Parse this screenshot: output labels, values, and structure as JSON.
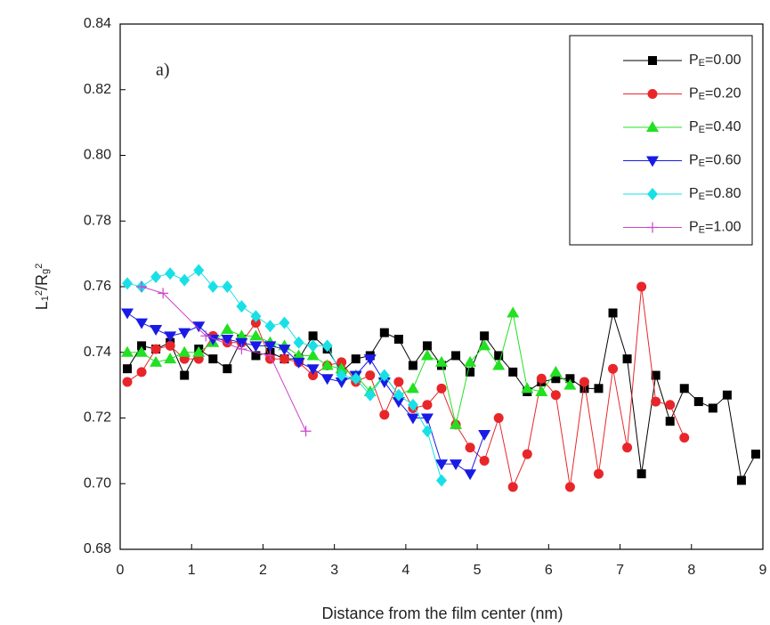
{
  "chart_data": {
    "type": "line",
    "annotation": "a)",
    "x_label": "Distance from the film center (nm)",
    "y_label": "L12/Rg2",
    "xlim": [
      0,
      9
    ],
    "ylim": [
      0.68,
      0.84
    ],
    "xticks": [
      0,
      1,
      2,
      3,
      4,
      5,
      6,
      7,
      8,
      9
    ],
    "yticks": [
      0.68,
      {
        "value": 0.7,
        "label": "0.70"
      },
      0.72,
      0.74,
      0.76,
      0.78,
      {
        "value": 0.8,
        "label": "0.80"
      },
      0.82,
      0.84
    ],
    "legend": "upper right",
    "series": [
      {
        "name": "PE=0.00",
        "color": "#000000",
        "marker": "square",
        "x": [
          0.1,
          0.3,
          0.5,
          0.7,
          0.9,
          1.1,
          1.3,
          1.5,
          1.7,
          1.9,
          2.1,
          2.3,
          2.5,
          2.7,
          2.9,
          3.1,
          3.3,
          3.5,
          3.7,
          3.9,
          4.1,
          4.3,
          4.5,
          4.7,
          4.9,
          5.1,
          5.3,
          5.5,
          5.7,
          5.9,
          6.1,
          6.3,
          6.5,
          6.7,
          6.9,
          7.1,
          7.3,
          7.5,
          7.7,
          7.9,
          8.1,
          8.3,
          8.5,
          8.7,
          8.9
        ],
        "values": [
          0.735,
          0.742,
          0.741,
          0.743,
          0.733,
          0.741,
          0.738,
          0.735,
          0.744,
          0.739,
          0.74,
          0.738,
          0.738,
          0.745,
          0.741,
          0.734,
          0.738,
          0.739,
          0.746,
          0.744,
          0.736,
          0.742,
          0.736,
          0.739,
          0.734,
          0.745,
          0.739,
          0.734,
          0.728,
          0.731,
          0.732,
          0.732,
          0.729,
          0.729,
          0.752,
          0.738,
          0.703,
          0.733,
          0.719,
          0.729,
          0.725,
          0.723,
          0.727,
          0.701,
          0.709
        ]
      },
      {
        "name": "PE=0.20",
        "color": "#e8262a",
        "marker": "circle",
        "x": [
          0.1,
          0.3,
          0.5,
          0.7,
          0.9,
          1.1,
          1.3,
          1.5,
          1.7,
          1.9,
          2.1,
          2.3,
          2.5,
          2.7,
          2.9,
          3.1,
          3.3,
          3.5,
          3.7,
          3.9,
          4.1,
          4.3,
          4.5,
          4.7,
          4.9,
          5.1,
          5.3,
          5.5,
          5.7,
          5.9,
          6.1,
          6.3,
          6.5,
          6.7,
          6.9,
          7.1,
          7.3,
          7.5,
          7.7,
          7.9
        ],
        "values": [
          0.731,
          0.734,
          0.741,
          0.742,
          0.738,
          0.738,
          0.745,
          0.743,
          0.743,
          0.749,
          0.738,
          0.738,
          0.737,
          0.733,
          0.736,
          0.737,
          0.731,
          0.733,
          0.721,
          0.731,
          0.723,
          0.724,
          0.729,
          0.718,
          0.711,
          0.707,
          0.72,
          0.699,
          0.709,
          0.732,
          0.727,
          0.699,
          0.731,
          0.703,
          0.735,
          0.711,
          0.76,
          0.725,
          0.724,
          0.714
        ]
      },
      {
        "name": "PE=0.40",
        "color": "#22e022",
        "marker": "triangle-up",
        "x": [
          0.1,
          0.3,
          0.5,
          0.7,
          0.9,
          1.1,
          1.3,
          1.5,
          1.7,
          1.9,
          2.1,
          2.3,
          2.5,
          2.7,
          2.9,
          3.1,
          3.3,
          3.5,
          3.7,
          3.9,
          4.1,
          4.3,
          4.5,
          4.7,
          4.9,
          5.1,
          5.3,
          5.5,
          5.7,
          5.9,
          6.1,
          6.3
        ],
        "values": [
          0.74,
          0.74,
          0.737,
          0.738,
          0.74,
          0.74,
          0.743,
          0.747,
          0.745,
          0.745,
          0.743,
          0.742,
          0.739,
          0.739,
          0.736,
          0.735,
          0.733,
          0.728,
          0.733,
          0.727,
          0.729,
          0.739,
          0.737,
          0.718,
          0.737,
          0.742,
          0.736,
          0.752,
          0.729,
          0.728,
          0.734,
          0.73
        ]
      },
      {
        "name": "PE=0.60",
        "color": "#1a1ae6",
        "marker": "triangle-down",
        "x": [
          0.1,
          0.3,
          0.5,
          0.7,
          0.9,
          1.1,
          1.3,
          1.5,
          1.7,
          1.9,
          2.1,
          2.3,
          2.5,
          2.7,
          2.9,
          3.1,
          3.3,
          3.5,
          3.7,
          3.9,
          4.1,
          4.3,
          4.5,
          4.7,
          4.9,
          5.1
        ],
        "values": [
          0.752,
          0.749,
          0.747,
          0.745,
          0.746,
          0.748,
          0.744,
          0.744,
          0.743,
          0.742,
          0.742,
          0.741,
          0.737,
          0.735,
          0.732,
          0.731,
          0.733,
          0.738,
          0.731,
          0.725,
          0.72,
          0.72,
          0.706,
          0.706,
          0.703,
          0.715
        ]
      },
      {
        "name": "PE=0.80",
        "color": "#19e0e6",
        "marker": "diamond",
        "x": [
          0.1,
          0.3,
          0.5,
          0.7,
          0.9,
          1.1,
          1.3,
          1.5,
          1.7,
          1.9,
          2.1,
          2.3,
          2.5,
          2.7,
          2.9,
          3.1,
          3.3,
          3.5,
          3.7,
          3.9,
          4.1,
          4.3,
          4.5
        ],
        "values": [
          0.761,
          0.76,
          0.763,
          0.764,
          0.762,
          0.765,
          0.76,
          0.76,
          0.754,
          0.751,
          0.748,
          0.749,
          0.743,
          0.742,
          0.742,
          0.733,
          0.732,
          0.727,
          0.733,
          0.727,
          0.724,
          0.716,
          0.701
        ]
      },
      {
        "name": "PE=1.00",
        "color": "#cc44cc",
        "marker": "plus",
        "x": [
          0.3,
          0.6,
          1.2,
          1.7,
          2.1,
          2.6
        ],
        "values": [
          0.76,
          0.758,
          0.745,
          0.741,
          0.739,
          0.716
        ]
      }
    ]
  }
}
